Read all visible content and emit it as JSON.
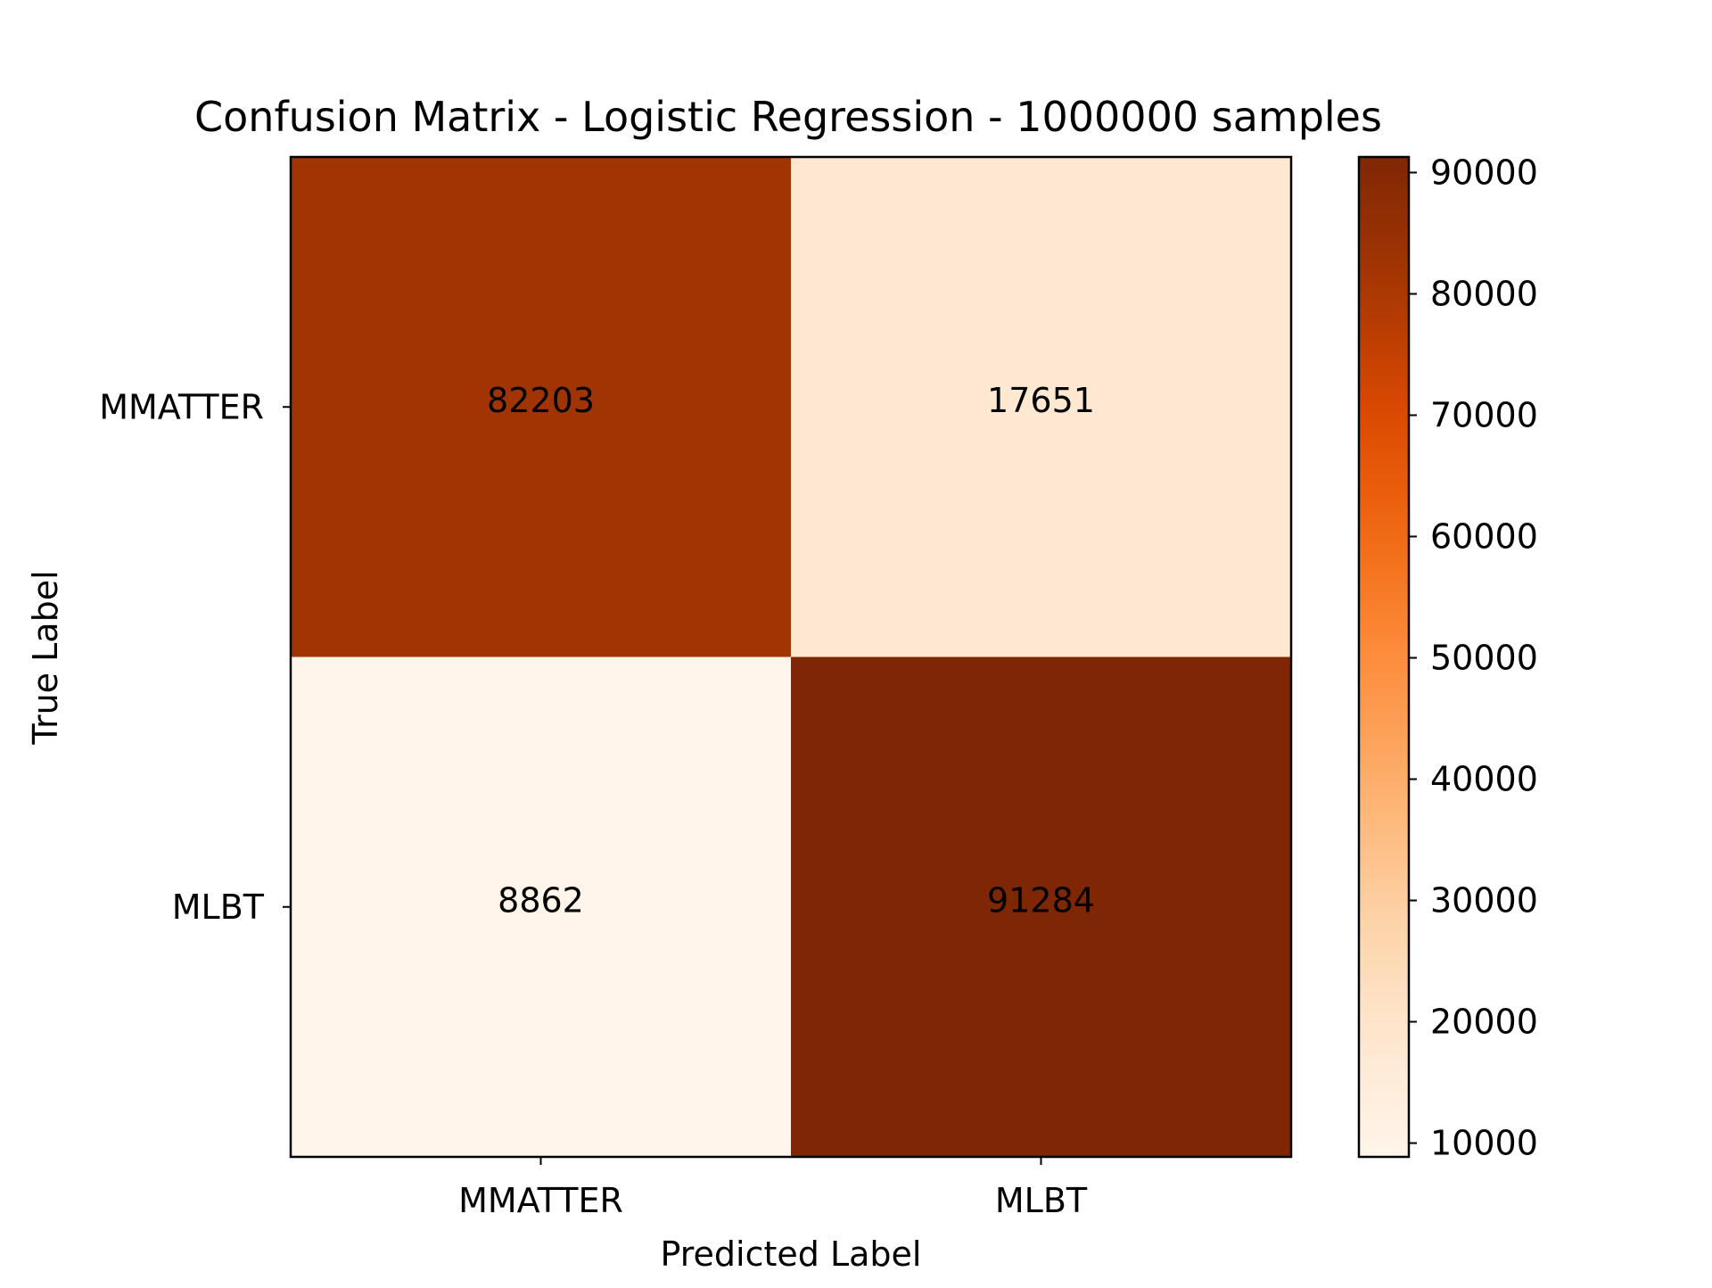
{
  "chart_data": {
    "type": "heatmap",
    "title": "Confusion Matrix - Logistic Regression - 1000000 samples",
    "xlabel": "Predicted Label",
    "ylabel": "True Label",
    "x_categories": [
      "MMATTER",
      "MLBT"
    ],
    "y_categories": [
      "MMATTER",
      "MLBT"
    ],
    "matrix": [
      [
        82203,
        17651
      ],
      [
        8862,
        91284
      ]
    ],
    "colormap": "Oranges",
    "colorbar": {
      "min": 8862,
      "max": 91284,
      "ticks": [
        10000,
        20000,
        30000,
        40000,
        50000,
        60000,
        70000,
        80000,
        90000
      ]
    },
    "colors": {
      "low": "#fff5eb",
      "high": "#7f2704",
      "text": "#000000"
    }
  }
}
